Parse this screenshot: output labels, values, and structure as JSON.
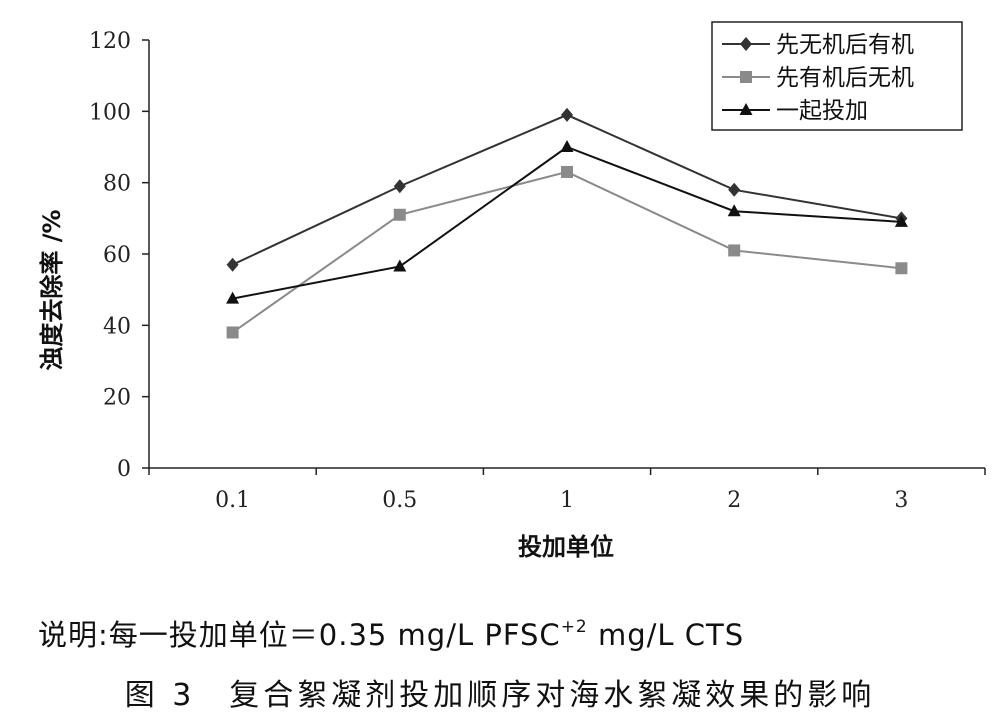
{
  "chart_data": {
    "type": "line",
    "categories": [
      "0.1",
      "0.5",
      "1",
      "2",
      "3"
    ],
    "xlabel": "投加单位",
    "ylabel": "浊度去除率 /%",
    "ylim": [
      0,
      120
    ],
    "yticks": [
      0,
      20,
      40,
      60,
      80,
      100,
      120
    ],
    "grid": false,
    "legend_position": "top-right",
    "series": [
      {
        "name": "先无机后有机",
        "marker": "diamond",
        "color": "#333333",
        "values": [
          57,
          79,
          99,
          78,
          70
        ]
      },
      {
        "name": "先有机后无机",
        "marker": "square",
        "color": "#8a8a8a",
        "values": [
          38,
          71,
          83,
          61,
          56
        ]
      },
      {
        "name": "一起投加",
        "marker": "triangle",
        "color": "#111111",
        "values": [
          47.5,
          56.5,
          90,
          72,
          69
        ]
      }
    ]
  },
  "note": {
    "prefix": "说明:每一投加单位＝0.35 mg/L PFSC",
    "superscript": "+2",
    "suffix": " mg/L CTS"
  },
  "caption": "图 3　复合絮凝剂投加顺序对海水絮凝效果的影响"
}
